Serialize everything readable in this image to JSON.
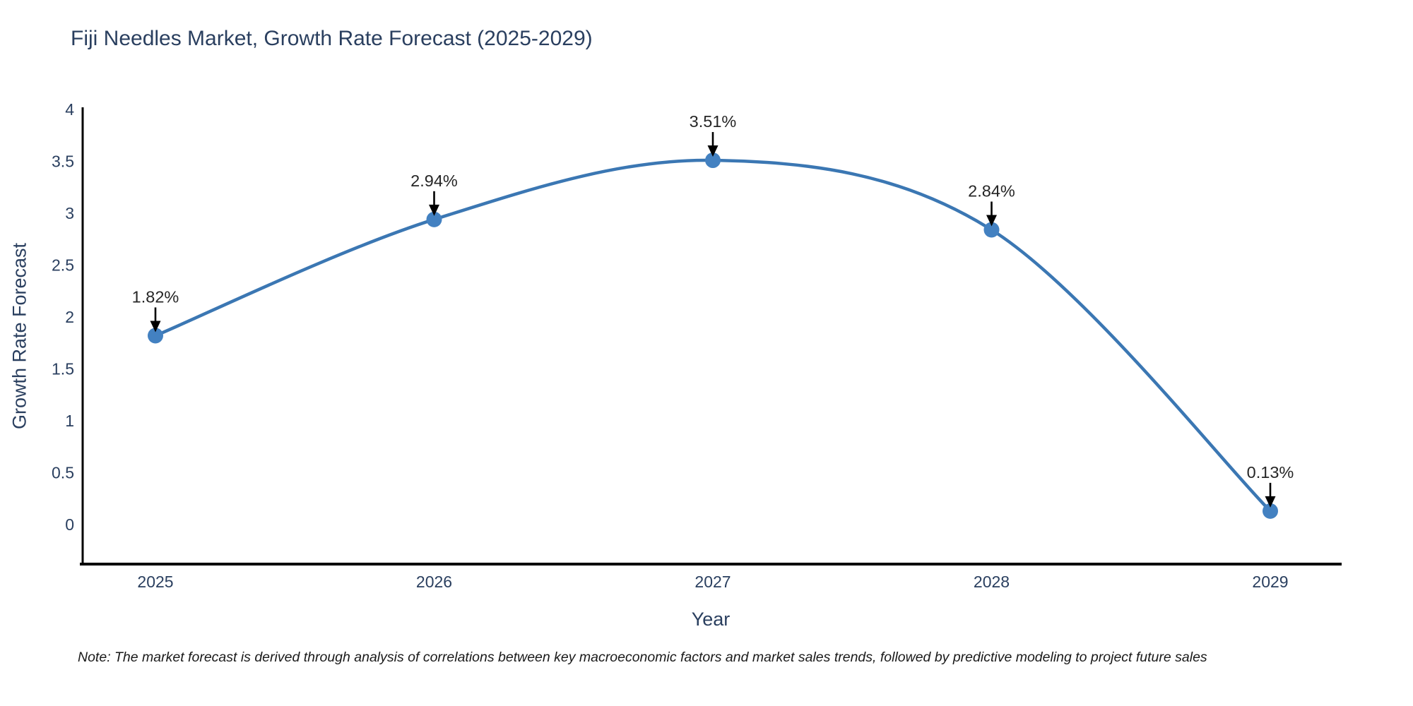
{
  "page": {
    "background": "#ffffff"
  },
  "chart_data": {
    "type": "line",
    "title": "Fiji Needles Market, Growth Rate Forecast (2025-2029)",
    "xlabel": "Year",
    "ylabel": "Growth Rate Forecast",
    "categories": [
      "2025",
      "2026",
      "2027",
      "2028",
      "2029"
    ],
    "series": [
      {
        "name": "Growth Rate Forecast",
        "values": [
          1.82,
          2.94,
          3.51,
          2.84,
          0.13
        ]
      }
    ],
    "point_labels": [
      "1.82%",
      "2.94%",
      "3.51%",
      "2.84%",
      "0.13%"
    ],
    "ylim": [
      0,
      4
    ],
    "yticks": [
      "0",
      "0.5",
      "1",
      "1.5",
      "2",
      "2.5",
      "3",
      "3.5",
      "4"
    ],
    "line_shape": "spline",
    "grid": false,
    "legend": "none",
    "colors": {
      "line": "#3b77b3",
      "marker": "#4381c1",
      "axis": "#000000",
      "title_text": "#2a3f5f",
      "tick_text": "#2a3f5f",
      "annotation_text": "#262626",
      "arrow": "#000000"
    }
  },
  "footnote": {
    "text": "Note: The market forecast is derived through analysis of correlations between key macroeconomic factors and market sales trends, followed by predictive modeling to project future sales"
  }
}
